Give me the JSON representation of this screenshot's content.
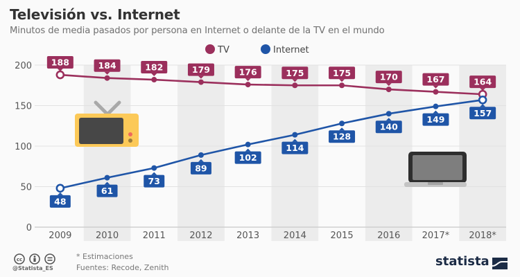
{
  "header": {
    "title": "Televisión vs. Internet",
    "subtitle": "Minutos de media pasados por persona en Internet o delante de la TV en el mundo"
  },
  "footer": {
    "note": "* Estimaciones",
    "sources": "Fuentes: Recode, Zenith",
    "handle": "@Statista_ES",
    "license_icons": [
      "cc-icon",
      "by-attribution-icon",
      "nd-no-derivatives-icon"
    ],
    "brand": "statista"
  },
  "colors": {
    "tv": "#9b2f5c",
    "internet": "#1f55a7",
    "band": "#ececec",
    "grid": "#e2e2e2"
  },
  "illustrations": [
    "tv-icon",
    "laptop-icon"
  ],
  "chart_data": {
    "type": "line",
    "title": "Televisión vs. Internet",
    "subtitle": "Minutos de media pasados por persona en Internet o delante de la TV en el mundo",
    "xlabel": "",
    "ylabel": "",
    "categories": [
      "2009",
      "2010",
      "2011",
      "2012",
      "2013",
      "2014",
      "2015",
      "2016",
      "2017*",
      "2018*"
    ],
    "series": [
      {
        "name": "TV",
        "color": "#9b2f5c",
        "values": [
          188,
          184,
          182,
          179,
          176,
          175,
          175,
          170,
          167,
          164
        ]
      },
      {
        "name": "Internet",
        "color": "#1f55a7",
        "values": [
          48,
          61,
          73,
          89,
          102,
          114,
          128,
          140,
          149,
          157
        ]
      }
    ],
    "ylim": [
      0,
      200
    ],
    "yticks": [
      0,
      50,
      100,
      150,
      200
    ],
    "grid": true,
    "alternating_column_bands": true,
    "legend_position": "top-center",
    "data_labels": true,
    "annotations": [
      "* Estimaciones"
    ]
  }
}
